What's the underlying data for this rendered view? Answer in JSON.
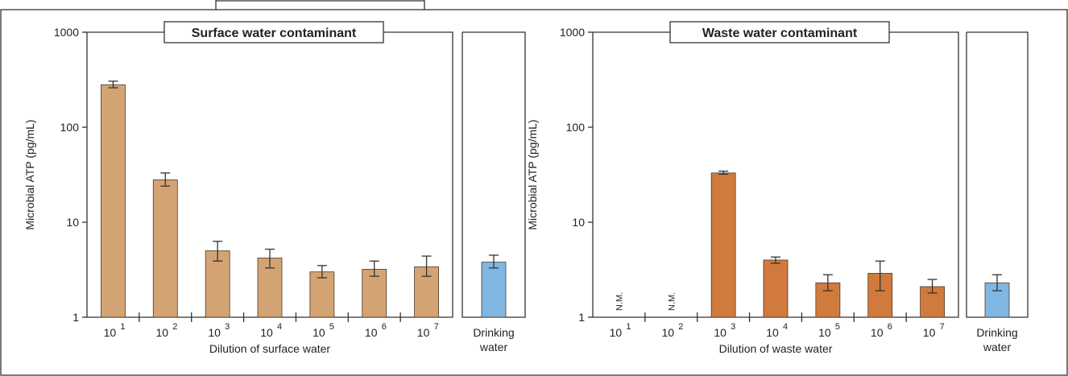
{
  "colors": {
    "surface_bar": "#d4a373",
    "waste_bar": "#d07b3d",
    "drinking_bar": "#7fb6e2",
    "bar_edge": "#4a3a2a"
  },
  "chart_data": [
    {
      "type": "bar",
      "title": "Surface water contaminant",
      "xlabel": "Dilution of surface water",
      "ylabel": "Microbial ATP (pg/mL)",
      "yscale": "log",
      "ylim": [
        1,
        1000
      ],
      "yticks": [
        "1",
        "10",
        "100",
        "1000"
      ],
      "categories": [
        {
          "base": "10",
          "exp": "1"
        },
        {
          "base": "10",
          "exp": "2"
        },
        {
          "base": "10",
          "exp": "3"
        },
        {
          "base": "10",
          "exp": "4"
        },
        {
          "base": "10",
          "exp": "5"
        },
        {
          "base": "10",
          "exp": "6"
        },
        {
          "base": "10",
          "exp": "7"
        }
      ],
      "values": [
        280,
        28,
        5,
        4.2,
        3.0,
        3.2,
        3.4
      ],
      "err_low": [
        260,
        24,
        3.9,
        3.3,
        2.6,
        2.7,
        2.7
      ],
      "err_high": [
        305,
        33,
        6.3,
        5.2,
        3.5,
        3.9,
        4.4
      ],
      "nm_labels": [
        "",
        "",
        "",
        "",
        "",
        "",
        ""
      ],
      "reference": {
        "label_lines": [
          "Drinking",
          "water"
        ],
        "value": 3.8,
        "err_low": 3.3,
        "err_high": 4.5
      }
    },
    {
      "type": "bar",
      "title": "Waste water contaminant",
      "xlabel": "Dilution of waste water",
      "ylabel": "Microbial ATP (pg/mL)",
      "yscale": "log",
      "ylim": [
        1,
        1000
      ],
      "yticks": [
        "1",
        "10",
        "100",
        "1000"
      ],
      "categories": [
        {
          "base": "10",
          "exp": "1"
        },
        {
          "base": "10",
          "exp": "2"
        },
        {
          "base": "10",
          "exp": "3"
        },
        {
          "base": "10",
          "exp": "4"
        },
        {
          "base": "10",
          "exp": "5"
        },
        {
          "base": "10",
          "exp": "6"
        },
        {
          "base": "10",
          "exp": "7"
        }
      ],
      "values": [
        null,
        null,
        33,
        4.0,
        2.3,
        2.9,
        2.1
      ],
      "err_low": [
        null,
        null,
        32,
        3.7,
        1.9,
        1.9,
        1.8
      ],
      "err_high": [
        null,
        null,
        34.5,
        4.3,
        2.8,
        3.9,
        2.5
      ],
      "nm_labels": [
        "N.M.",
        "N.M.",
        "",
        "",
        "",
        "",
        ""
      ],
      "reference": {
        "label_lines": [
          "Drinking",
          "water"
        ],
        "value": 2.3,
        "err_low": 1.9,
        "err_high": 2.8
      }
    }
  ]
}
